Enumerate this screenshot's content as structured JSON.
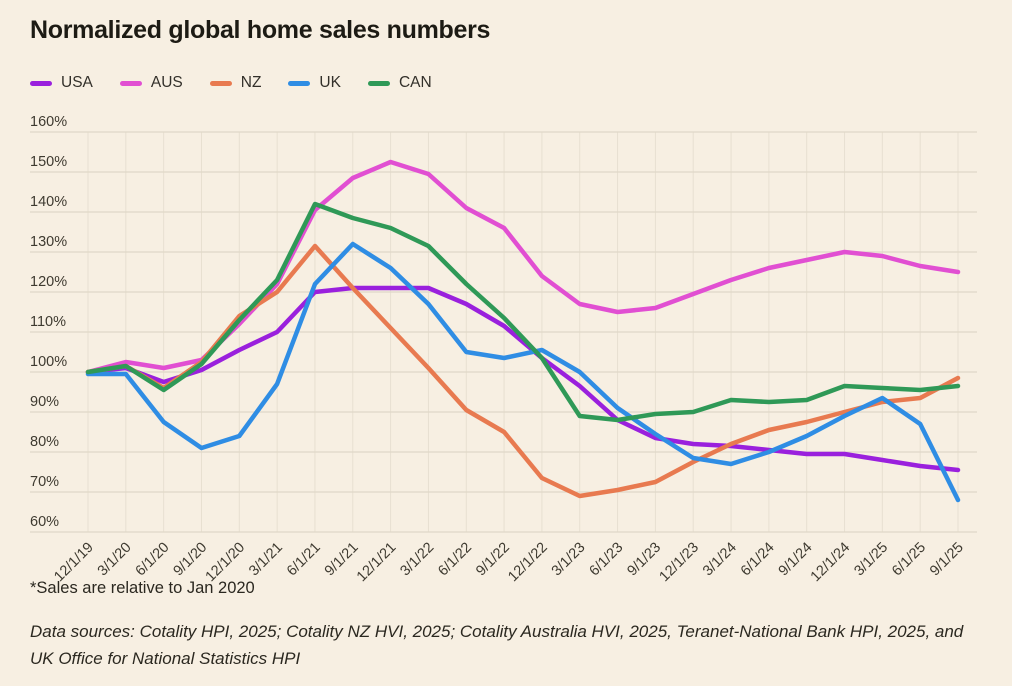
{
  "title": "Normalized global home sales numbers",
  "legend": [
    {
      "label": "USA",
      "color": "#9a20dd"
    },
    {
      "label": "AUS",
      "color": "#e14fd2"
    },
    {
      "label": "NZ",
      "color": "#e87a50"
    },
    {
      "label": "UK",
      "color": "#2f8de4"
    },
    {
      "label": "CAN",
      "color": "#2f9957"
    }
  ],
  "footnote": "*Sales are relative to Jan 2020",
  "source_note": "Data sources: Cotality HPI, 2025; Cotality NZ HVI, 2025; Cotality Australia HVI, 2025, Teranet-National Bank HPI, 2025, and UK Office for National Statistics HPI",
  "colors": {
    "background": "#f7efe2",
    "gridline": "#e0d8c8",
    "axis_text": "#3e3a30",
    "title_text": "#1d1b14"
  },
  "chart_data": {
    "type": "line",
    "title": "Normalized global home sales numbers",
    "xlabel": "",
    "ylabel": "",
    "ylim": [
      60,
      160
    ],
    "ytick_step": 10,
    "ytick_suffix": "%",
    "grid": true,
    "legend_position": "top-left",
    "x": [
      "12/1/19",
      "3/1/20",
      "6/1/20",
      "9/1/20",
      "12/1/20",
      "3/1/21",
      "6/1/21",
      "9/1/21",
      "12/1/21",
      "3/1/22",
      "6/1/22",
      "9/1/22",
      "12/1/22",
      "3/1/23",
      "6/1/23",
      "9/1/23",
      "12/1/23",
      "3/1/24",
      "6/1/24",
      "9/1/24",
      "12/1/24",
      "3/1/25",
      "6/1/25",
      "9/1/25"
    ],
    "series": [
      {
        "name": "USA",
        "color": "#9a20dd",
        "values": [
          100,
          101,
          97.5,
          100.5,
          105.5,
          110,
          120,
          121,
          121,
          121,
          117,
          111.5,
          103.5,
          96.5,
          88,
          83.5,
          82,
          81.5,
          80.5,
          79.5,
          79.5,
          78,
          76.5,
          75.5
        ]
      },
      {
        "name": "AUS",
        "color": "#e14fd2",
        "values": [
          100,
          102.5,
          101,
          103,
          112,
          122,
          140.5,
          148.5,
          152.5,
          149.5,
          141,
          136,
          124,
          117,
          115,
          116,
          119.5,
          123,
          126,
          128,
          130,
          129,
          126.5,
          125
        ]
      },
      {
        "name": "NZ",
        "color": "#e87a50",
        "values": [
          100,
          101.5,
          96,
          102.5,
          114,
          120,
          131.5,
          121,
          111,
          101,
          90.5,
          85,
          73.5,
          69,
          70.5,
          72.5,
          77.5,
          82,
          85.5,
          87.5,
          90,
          92.5,
          93.5,
          98.5
        ]
      },
      {
        "name": "UK",
        "color": "#2f8de4",
        "values": [
          99.5,
          99.5,
          87.5,
          81,
          84,
          97,
          122,
          132,
          126,
          117,
          105,
          103.5,
          105.5,
          100,
          91,
          84.5,
          78.5,
          77,
          80,
          84,
          89,
          93.5,
          87,
          68
        ]
      },
      {
        "name": "CAN",
        "color": "#2f9957",
        "values": [
          100,
          101.5,
          95.5,
          102,
          113,
          123,
          142,
          138.5,
          136,
          131.5,
          122,
          113.5,
          103.5,
          89,
          88,
          89.5,
          90,
          93,
          92.5,
          93,
          96.5,
          96,
          95.5,
          96.5
        ]
      }
    ]
  }
}
